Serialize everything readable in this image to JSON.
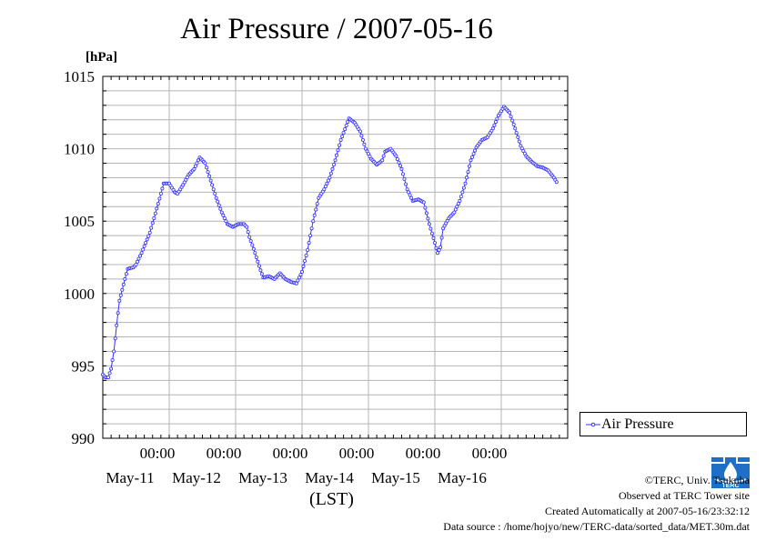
{
  "chart_data": {
    "type": "line",
    "title": "Air Pressure / 2007-05-16",
    "ylabel": "[hPa]",
    "xlabel": "(LST)",
    "ylim": [
      990,
      1015
    ],
    "yticks": [
      990,
      995,
      1000,
      1005,
      1010,
      1015
    ],
    "grid": true,
    "legend_position": "bottom-right outside plot",
    "x_tick_labels": [
      {
        "time": "00:00",
        "date": "May-11"
      },
      {
        "time": "00:00",
        "date": "May-12"
      },
      {
        "time": "00:00",
        "date": "May-13"
      },
      {
        "time": "00:00",
        "date": "May-14"
      },
      {
        "time": "00:00",
        "date": "May-15"
      },
      {
        "time": "00:00",
        "date": "May-16"
      }
    ],
    "xlim": [
      "2007-05-10 00:00",
      "2007-05-17 00:00"
    ],
    "series": [
      {
        "name": "Air Pressure",
        "color": "#3333ff",
        "points": [
          [
            "2007-05-10 00:00",
            994.4
          ],
          [
            "2007-05-10 01:00",
            994.2
          ],
          [
            "2007-05-10 02:00",
            994.2
          ],
          [
            "2007-05-10 03:00",
            994.8
          ],
          [
            "2007-05-10 04:00",
            996.0
          ],
          [
            "2007-05-10 05:00",
            997.8
          ],
          [
            "2007-05-10 06:00",
            999.5
          ],
          [
            "2007-05-10 08:00",
            1001.0
          ],
          [
            "2007-05-10 09:00",
            1001.7
          ],
          [
            "2007-05-10 11:00",
            1001.8
          ],
          [
            "2007-05-10 12:00",
            1002.0
          ],
          [
            "2007-05-10 14:00",
            1002.8
          ],
          [
            "2007-05-10 17:00",
            1004.2
          ],
          [
            "2007-05-10 20:00",
            1006.2
          ],
          [
            "2007-05-10 22:00",
            1007.6
          ],
          [
            "2007-05-11 00:00",
            1007.6
          ],
          [
            "2007-05-11 02:00",
            1007.0
          ],
          [
            "2007-05-11 03:00",
            1006.9
          ],
          [
            "2007-05-11 05:00",
            1007.5
          ],
          [
            "2007-05-11 07:00",
            1008.2
          ],
          [
            "2007-05-11 09:00",
            1008.6
          ],
          [
            "2007-05-11 11:00",
            1009.4
          ],
          [
            "2007-05-11 13:00",
            1009.0
          ],
          [
            "2007-05-11 15:00",
            1007.8
          ],
          [
            "2007-05-11 17:00",
            1006.6
          ],
          [
            "2007-05-11 19:00",
            1005.6
          ],
          [
            "2007-05-11 21:00",
            1004.8
          ],
          [
            "2007-05-11 23:00",
            1004.6
          ],
          [
            "2007-05-12 01:00",
            1004.8
          ],
          [
            "2007-05-12 03:00",
            1004.8
          ],
          [
            "2007-05-12 04:00",
            1004.6
          ],
          [
            "2007-05-12 05:00",
            1003.9
          ],
          [
            "2007-05-12 07:00",
            1002.8
          ],
          [
            "2007-05-12 09:00",
            1001.6
          ],
          [
            "2007-05-12 10:00",
            1001.1
          ],
          [
            "2007-05-12 12:00",
            1001.2
          ],
          [
            "2007-05-12 14:00",
            1001.0
          ],
          [
            "2007-05-12 16:00",
            1001.4
          ],
          [
            "2007-05-12 18:00",
            1001.0
          ],
          [
            "2007-05-12 20:00",
            1000.8
          ],
          [
            "2007-05-12 22:00",
            1000.7
          ],
          [
            "2007-05-13 00:00",
            1001.5
          ],
          [
            "2007-05-13 02:00",
            1003.0
          ],
          [
            "2007-05-13 04:00",
            1005.0
          ],
          [
            "2007-05-13 06:00",
            1006.6
          ],
          [
            "2007-05-13 08:00",
            1007.2
          ],
          [
            "2007-05-13 10:00",
            1008.0
          ],
          [
            "2007-05-13 12:00",
            1009.2
          ],
          [
            "2007-05-13 14:00",
            1010.6
          ],
          [
            "2007-05-13 16:00",
            1011.6
          ],
          [
            "2007-05-13 17:00",
            1012.1
          ],
          [
            "2007-05-13 19:00",
            1011.8
          ],
          [
            "2007-05-13 21:00",
            1011.2
          ],
          [
            "2007-05-13 23:00",
            1010.0
          ],
          [
            "2007-05-14 01:00",
            1009.3
          ],
          [
            "2007-05-14 03:00",
            1008.9
          ],
          [
            "2007-05-14 05:00",
            1009.2
          ],
          [
            "2007-05-14 06:00",
            1009.8
          ],
          [
            "2007-05-14 08:00",
            1010.0
          ],
          [
            "2007-05-14 10:00",
            1009.5
          ],
          [
            "2007-05-14 12:00",
            1008.6
          ],
          [
            "2007-05-14 14:00",
            1007.2
          ],
          [
            "2007-05-14 16:00",
            1006.4
          ],
          [
            "2007-05-14 18:00",
            1006.5
          ],
          [
            "2007-05-14 20:00",
            1006.3
          ],
          [
            "2007-05-14 22:00",
            1004.8
          ],
          [
            "2007-05-15 00:00",
            1003.5
          ],
          [
            "2007-05-15 01:00",
            1002.8
          ],
          [
            "2007-05-15 02:00",
            1003.2
          ],
          [
            "2007-05-15 03:00",
            1004.5
          ],
          [
            "2007-05-15 05:00",
            1005.2
          ],
          [
            "2007-05-15 07:00",
            1005.6
          ],
          [
            "2007-05-15 09:00",
            1006.4
          ],
          [
            "2007-05-15 11:00",
            1007.6
          ],
          [
            "2007-05-15 13:00",
            1009.2
          ],
          [
            "2007-05-15 15:00",
            1010.1
          ],
          [
            "2007-05-15 17:00",
            1010.6
          ],
          [
            "2007-05-15 19:00",
            1010.8
          ],
          [
            "2007-05-15 21:00",
            1011.4
          ],
          [
            "2007-05-15 23:00",
            1012.3
          ],
          [
            "2007-05-16 01:00",
            1012.9
          ],
          [
            "2007-05-16 03:00",
            1012.5
          ],
          [
            "2007-05-16 05:00",
            1011.4
          ],
          [
            "2007-05-16 07:00",
            1010.2
          ],
          [
            "2007-05-16 09:00",
            1009.5
          ],
          [
            "2007-05-16 11:00",
            1009.1
          ],
          [
            "2007-05-16 13:00",
            1008.8
          ],
          [
            "2007-05-16 15:00",
            1008.7
          ],
          [
            "2007-05-16 17:00",
            1008.5
          ],
          [
            "2007-05-16 19:00",
            1008.0
          ],
          [
            "2007-05-16 20:00",
            1007.7
          ]
        ]
      }
    ]
  },
  "footer": {
    "copyright": "©TERC, Univ. Tsukuba",
    "site": "Observed at TERC Tower site",
    "created": "Created Automatically at 2007-05-16/23:32:12",
    "source": "Data source : /home/hojyo/new/TERC-data/sorted_data/MET.30m.dat"
  },
  "logo": {
    "text": "TERC",
    "color": "#1f6fc6"
  }
}
